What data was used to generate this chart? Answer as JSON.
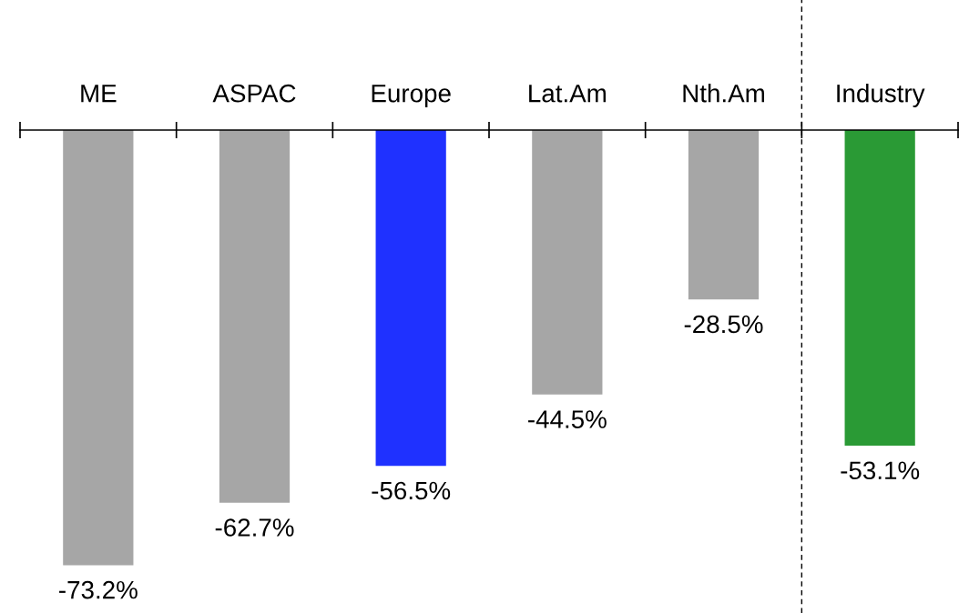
{
  "chart_data": {
    "type": "bar",
    "categories": [
      "ME",
      "ASPAC",
      "Europe",
      "Lat.Am",
      "Nth.Am",
      "Industry"
    ],
    "values": [
      -73.2,
      -62.7,
      -56.5,
      -44.5,
      -28.5,
      -53.1
    ],
    "colors": [
      "#a6a6a6",
      "#a6a6a6",
      "#1f31ff",
      "#a6a6a6",
      "#a6a6a6",
      "#2a9a35"
    ],
    "value_labels": [
      "-73.2%",
      "-62.7%",
      "-56.5%",
      "-44.5%",
      "-28.5%",
      "-53.1%"
    ],
    "grid": false,
    "legend": false
  }
}
